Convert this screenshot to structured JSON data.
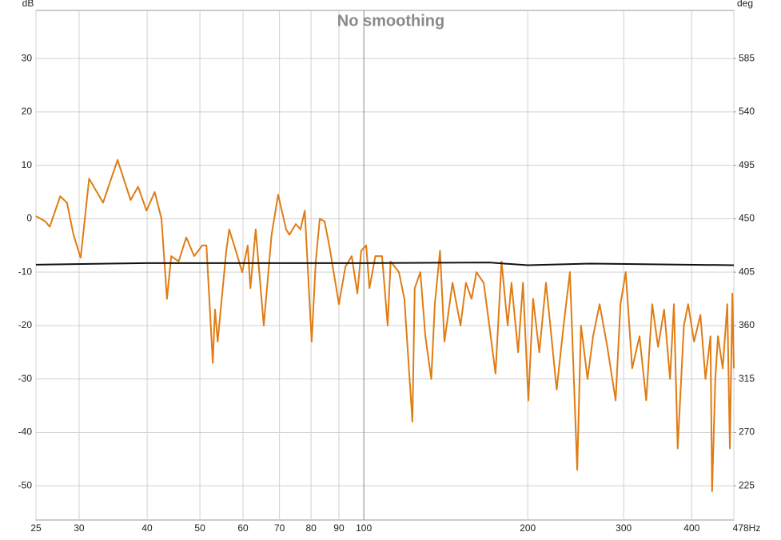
{
  "chart_data": {
    "type": "line",
    "title": "No smoothing",
    "y_label": "dB",
    "y2_label": "deg",
    "x_scale": "log",
    "grid": true,
    "xlim": [
      25,
      478
    ],
    "xticks": [
      25,
      30,
      40,
      50,
      60,
      70,
      80,
      90,
      100,
      200,
      300,
      400,
      {
        "value": 478,
        "label": "478Hz"
      }
    ],
    "ylim": [
      -56.4,
      39
    ],
    "yticks": [
      -50,
      -40,
      -30,
      -20,
      -10,
      0,
      10,
      20,
      30
    ],
    "y2lim": [
      196.2,
      625.5
    ],
    "y2ticks": [
      225,
      270,
      315,
      360,
      405,
      450,
      495,
      540,
      585
    ],
    "series": [
      {
        "color": "#e07c14",
        "x": [
          25,
          26,
          26.5,
          27.7,
          28.5,
          29.3,
          30.2,
          31.3,
          33.2,
          35.3,
          37.3,
          38.5,
          39.9,
          41.3,
          42.5,
          43.5,
          44.3,
          45.7,
          47.2,
          48.8,
          50.5,
          51.4,
          52.8,
          53.3,
          53.9,
          55.9,
          56.6,
          58.2,
          59.8,
          61.2,
          61.9,
          63.3,
          65.5,
          67.7,
          69.6,
          72,
          73,
          75,
          76.5,
          77.9,
          80.2,
          81.6,
          83,
          84.7,
          86.4,
          90,
          92.5,
          95,
          97.3,
          98.9,
          101,
          102.4,
          105,
          108,
          110.6,
          112,
          116,
          118.7,
          122.8,
          124,
          127,
          129.7,
          133,
          135,
          138,
          140.6,
          145.5,
          150.5,
          154,
          157.7,
          161,
          166,
          170,
          174.5,
          179,
          183.7,
          186.7,
          192,
          196,
          200.5,
          204.6,
          210,
          216,
          221,
          226,
          232.7,
          239,
          246.5,
          250.5,
          257.5,
          263.6,
          271,
          280,
          290,
          296,
          302.6,
          311,
          320.8,
          330,
          338.5,
          347,
          356,
          365,
          371,
          377,
          387,
          394,
          404,
          415,
          424,
          433,
          436,
          442,
          447,
          456,
          465,
          470,
          475,
          478
        ],
        "values": [
          0.5,
          -0.5,
          -1.5,
          4.2,
          3,
          -3,
          -7.3,
          7.5,
          3,
          11,
          3.5,
          6,
          1.5,
          5,
          0,
          -15,
          -7,
          -8,
          -3.5,
          -7,
          -5,
          -5,
          -27,
          -17,
          -23,
          -6,
          -2,
          -6,
          -10,
          -5,
          -13,
          -2,
          -20,
          -3,
          4.5,
          -2,
          -3,
          -1,
          -2,
          1.5,
          -23,
          -8,
          0,
          -0.5,
          -5,
          -16,
          -9,
          -7,
          -14,
          -6,
          -5,
          -13,
          -7,
          -7,
          -20,
          -8,
          -10,
          -15,
          -38,
          -13,
          -10,
          -22,
          -30,
          -16,
          -6,
          -23,
          -12,
          -20,
          -12,
          -15,
          -10,
          -12,
          -20,
          -29,
          -8,
          -20,
          -12,
          -25,
          -12,
          -34,
          -15,
          -25,
          -12,
          -22,
          -32,
          -20,
          -10,
          -47,
          -20,
          -30,
          -22,
          -16,
          -24,
          -34,
          -16,
          -10,
          -28,
          -22,
          -34,
          -16,
          -24,
          -17,
          -30,
          -16,
          -43,
          -20,
          -16,
          -23,
          -18,
          -30,
          -22,
          -51,
          -30,
          -22,
          -28,
          -16,
          -43,
          -14,
          -28
        ]
      },
      {
        "color": "#111111",
        "x": [
          25,
          40,
          100,
          170,
          200,
          260,
          478
        ],
        "values": [
          -8.6,
          -8.3,
          -8.3,
          -8.2,
          -8.7,
          -8.4,
          -8.7
        ]
      }
    ]
  }
}
